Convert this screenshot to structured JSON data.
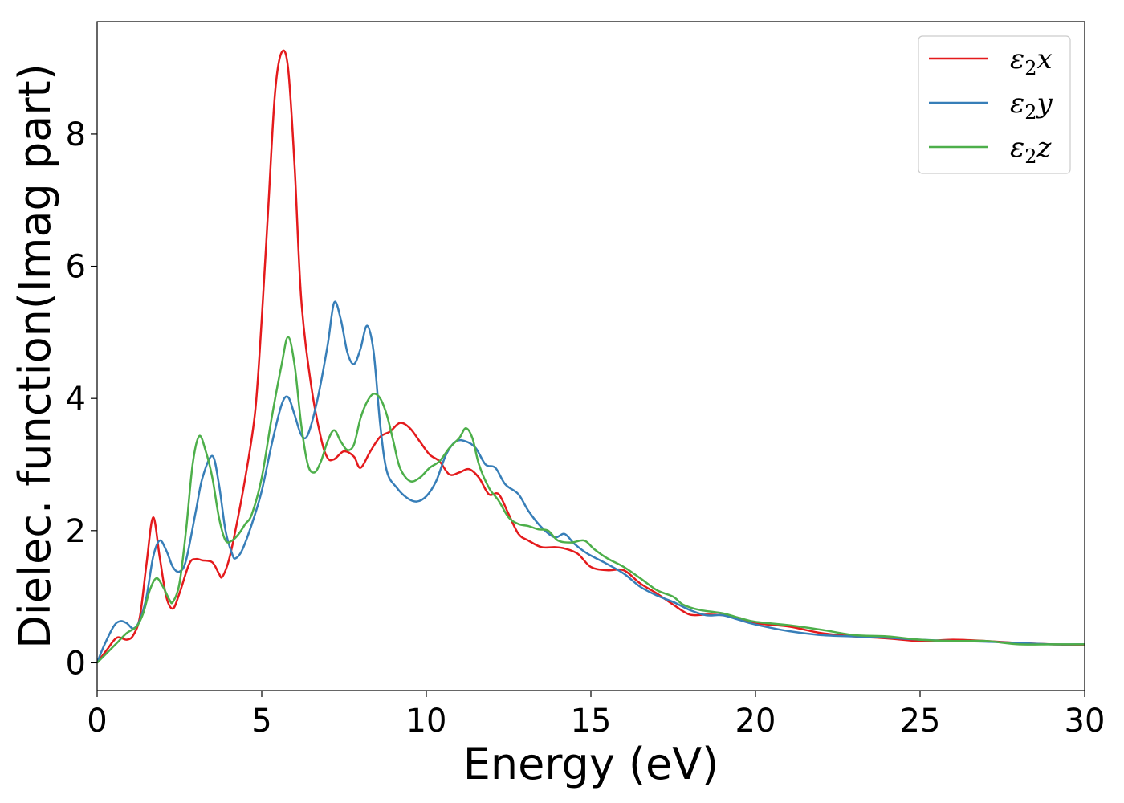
{
  "chart_data": {
    "type": "line",
    "title": "",
    "xlabel": "Energy (eV)",
    "ylabel": "Dielec. function(Imag part)",
    "xlim": [
      0,
      30
    ],
    "ylim": [
      -0.42,
      9.7
    ],
    "xticks": [
      0,
      5,
      10,
      15,
      20,
      25,
      30
    ],
    "yticks": [
      0,
      2,
      4,
      6,
      8
    ],
    "grid": false,
    "legend_position": "top-right",
    "series": [
      {
        "name": "ε2x",
        "legend": {
          "base": "ε",
          "sub": "2",
          "suffix": "x"
        },
        "color": "#e41a1c",
        "points": [
          [
            0,
            0
          ],
          [
            0.3,
            0.2
          ],
          [
            0.6,
            0.38
          ],
          [
            0.9,
            0.35
          ],
          [
            1.1,
            0.42
          ],
          [
            1.3,
            0.7
          ],
          [
            1.5,
            1.5
          ],
          [
            1.7,
            2.2
          ],
          [
            1.9,
            1.6
          ],
          [
            2.1,
            1.0
          ],
          [
            2.3,
            0.82
          ],
          [
            2.5,
            1.05
          ],
          [
            2.8,
            1.5
          ],
          [
            3.0,
            1.57
          ],
          [
            3.2,
            1.55
          ],
          [
            3.5,
            1.52
          ],
          [
            3.7,
            1.35
          ],
          [
            3.8,
            1.3
          ],
          [
            4.0,
            1.55
          ],
          [
            4.2,
            2.0
          ],
          [
            4.5,
            2.8
          ],
          [
            4.8,
            3.8
          ],
          [
            5.0,
            5.2
          ],
          [
            5.2,
            6.9
          ],
          [
            5.4,
            8.6
          ],
          [
            5.6,
            9.23
          ],
          [
            5.8,
            9.0
          ],
          [
            6.0,
            7.5
          ],
          [
            6.2,
            5.5
          ],
          [
            6.5,
            4.2
          ],
          [
            6.8,
            3.4
          ],
          [
            7.0,
            3.1
          ],
          [
            7.2,
            3.08
          ],
          [
            7.5,
            3.2
          ],
          [
            7.8,
            3.12
          ],
          [
            8.0,
            2.95
          ],
          [
            8.3,
            3.2
          ],
          [
            8.6,
            3.42
          ],
          [
            8.9,
            3.5
          ],
          [
            9.2,
            3.63
          ],
          [
            9.5,
            3.55
          ],
          [
            9.8,
            3.35
          ],
          [
            10.1,
            3.15
          ],
          [
            10.4,
            3.05
          ],
          [
            10.7,
            2.85
          ],
          [
            11.0,
            2.88
          ],
          [
            11.3,
            2.93
          ],
          [
            11.6,
            2.8
          ],
          [
            11.9,
            2.55
          ],
          [
            12.2,
            2.55
          ],
          [
            12.5,
            2.25
          ],
          [
            12.8,
            1.95
          ],
          [
            13.1,
            1.85
          ],
          [
            13.5,
            1.75
          ],
          [
            13.9,
            1.75
          ],
          [
            14.2,
            1.73
          ],
          [
            14.6,
            1.65
          ],
          [
            15.0,
            1.45
          ],
          [
            15.5,
            1.4
          ],
          [
            16.0,
            1.4
          ],
          [
            16.5,
            1.2
          ],
          [
            17.0,
            1.05
          ],
          [
            17.5,
            0.88
          ],
          [
            18.0,
            0.73
          ],
          [
            18.5,
            0.73
          ],
          [
            19.0,
            0.72
          ],
          [
            19.5,
            0.68
          ],
          [
            20.0,
            0.6
          ],
          [
            21.0,
            0.55
          ],
          [
            22.0,
            0.45
          ],
          [
            23.0,
            0.4
          ],
          [
            24.0,
            0.37
          ],
          [
            25.0,
            0.33
          ],
          [
            26.0,
            0.35
          ],
          [
            27.0,
            0.33
          ],
          [
            28.0,
            0.3
          ],
          [
            29.0,
            0.28
          ],
          [
            30.0,
            0.27
          ]
        ]
      },
      {
        "name": "ε2y",
        "legend": {
          "base": "ε",
          "sub": "2",
          "suffix": "y"
        },
        "color": "#377eb8",
        "points": [
          [
            0,
            0
          ],
          [
            0.2,
            0.25
          ],
          [
            0.5,
            0.55
          ],
          [
            0.7,
            0.63
          ],
          [
            0.9,
            0.6
          ],
          [
            1.1,
            0.52
          ],
          [
            1.3,
            0.65
          ],
          [
            1.5,
            1.0
          ],
          [
            1.7,
            1.6
          ],
          [
            1.9,
            1.85
          ],
          [
            2.1,
            1.7
          ],
          [
            2.3,
            1.45
          ],
          [
            2.5,
            1.38
          ],
          [
            2.7,
            1.55
          ],
          [
            3.0,
            2.3
          ],
          [
            3.2,
            2.8
          ],
          [
            3.5,
            3.13
          ],
          [
            3.7,
            2.7
          ],
          [
            3.9,
            2.0
          ],
          [
            4.1,
            1.65
          ],
          [
            4.2,
            1.58
          ],
          [
            4.4,
            1.7
          ],
          [
            4.7,
            2.1
          ],
          [
            5.0,
            2.6
          ],
          [
            5.3,
            3.3
          ],
          [
            5.6,
            3.9
          ],
          [
            5.8,
            4.02
          ],
          [
            6.0,
            3.75
          ],
          [
            6.2,
            3.45
          ],
          [
            6.4,
            3.45
          ],
          [
            6.7,
            4.0
          ],
          [
            7.0,
            4.8
          ],
          [
            7.2,
            5.45
          ],
          [
            7.4,
            5.2
          ],
          [
            7.6,
            4.7
          ],
          [
            7.8,
            4.52
          ],
          [
            8.0,
            4.75
          ],
          [
            8.2,
            5.1
          ],
          [
            8.4,
            4.7
          ],
          [
            8.6,
            3.6
          ],
          [
            8.8,
            2.9
          ],
          [
            9.1,
            2.65
          ],
          [
            9.4,
            2.5
          ],
          [
            9.7,
            2.44
          ],
          [
            10.0,
            2.52
          ],
          [
            10.3,
            2.75
          ],
          [
            10.6,
            3.15
          ],
          [
            10.9,
            3.35
          ],
          [
            11.2,
            3.35
          ],
          [
            11.5,
            3.25
          ],
          [
            11.8,
            3.0
          ],
          [
            12.1,
            2.95
          ],
          [
            12.4,
            2.7
          ],
          [
            12.8,
            2.55
          ],
          [
            13.1,
            2.3
          ],
          [
            13.5,
            2.05
          ],
          [
            13.9,
            1.9
          ],
          [
            14.2,
            1.95
          ],
          [
            14.5,
            1.8
          ],
          [
            14.9,
            1.65
          ],
          [
            15.4,
            1.52
          ],
          [
            16.0,
            1.35
          ],
          [
            16.5,
            1.15
          ],
          [
            17.0,
            1.02
          ],
          [
            17.5,
            0.92
          ],
          [
            18.0,
            0.8
          ],
          [
            18.5,
            0.72
          ],
          [
            19.0,
            0.72
          ],
          [
            19.5,
            0.65
          ],
          [
            20.0,
            0.58
          ],
          [
            21.0,
            0.48
          ],
          [
            22.0,
            0.42
          ],
          [
            23.0,
            0.4
          ],
          [
            24.0,
            0.38
          ],
          [
            25.0,
            0.35
          ],
          [
            26.0,
            0.33
          ],
          [
            27.0,
            0.32
          ],
          [
            28.0,
            0.3
          ],
          [
            29.0,
            0.28
          ],
          [
            30.0,
            0.28
          ]
        ]
      },
      {
        "name": "ε2z",
        "legend": {
          "base": "ε",
          "sub": "2",
          "suffix": "z"
        },
        "color": "#4daf4a",
        "points": [
          [
            0,
            0
          ],
          [
            0.3,
            0.15
          ],
          [
            0.6,
            0.3
          ],
          [
            0.9,
            0.45
          ],
          [
            1.2,
            0.55
          ],
          [
            1.4,
            0.75
          ],
          [
            1.6,
            1.1
          ],
          [
            1.8,
            1.28
          ],
          [
            2.0,
            1.15
          ],
          [
            2.2,
            0.95
          ],
          [
            2.3,
            0.92
          ],
          [
            2.5,
            1.2
          ],
          [
            2.7,
            2.0
          ],
          [
            2.9,
            3.0
          ],
          [
            3.1,
            3.43
          ],
          [
            3.3,
            3.2
          ],
          [
            3.5,
            2.8
          ],
          [
            3.7,
            2.2
          ],
          [
            3.9,
            1.85
          ],
          [
            4.1,
            1.85
          ],
          [
            4.3,
            1.95
          ],
          [
            4.5,
            2.1
          ],
          [
            4.7,
            2.25
          ],
          [
            5.0,
            2.8
          ],
          [
            5.3,
            3.7
          ],
          [
            5.6,
            4.5
          ],
          [
            5.8,
            4.93
          ],
          [
            6.0,
            4.5
          ],
          [
            6.2,
            3.6
          ],
          [
            6.4,
            3.0
          ],
          [
            6.6,
            2.88
          ],
          [
            6.8,
            3.05
          ],
          [
            7.0,
            3.35
          ],
          [
            7.2,
            3.52
          ],
          [
            7.4,
            3.35
          ],
          [
            7.6,
            3.22
          ],
          [
            7.8,
            3.3
          ],
          [
            8.0,
            3.7
          ],
          [
            8.2,
            3.95
          ],
          [
            8.4,
            4.07
          ],
          [
            8.6,
            4.0
          ],
          [
            8.8,
            3.75
          ],
          [
            9.0,
            3.35
          ],
          [
            9.2,
            2.95
          ],
          [
            9.5,
            2.75
          ],
          [
            9.8,
            2.8
          ],
          [
            10.1,
            2.95
          ],
          [
            10.4,
            3.05
          ],
          [
            10.7,
            3.25
          ],
          [
            11.0,
            3.4
          ],
          [
            11.2,
            3.55
          ],
          [
            11.4,
            3.4
          ],
          [
            11.6,
            3.0
          ],
          [
            11.9,
            2.65
          ],
          [
            12.2,
            2.45
          ],
          [
            12.5,
            2.2
          ],
          [
            12.8,
            2.1
          ],
          [
            13.1,
            2.07
          ],
          [
            13.4,
            2.02
          ],
          [
            13.7,
            2.0
          ],
          [
            14.0,
            1.85
          ],
          [
            14.4,
            1.82
          ],
          [
            14.8,
            1.85
          ],
          [
            15.1,
            1.72
          ],
          [
            15.5,
            1.58
          ],
          [
            16.0,
            1.45
          ],
          [
            16.5,
            1.28
          ],
          [
            17.0,
            1.1
          ],
          [
            17.5,
            1.0
          ],
          [
            17.8,
            0.88
          ],
          [
            18.3,
            0.8
          ],
          [
            19.0,
            0.75
          ],
          [
            19.5,
            0.68
          ],
          [
            20.0,
            0.62
          ],
          [
            21.0,
            0.57
          ],
          [
            22.0,
            0.5
          ],
          [
            23.0,
            0.42
          ],
          [
            24.0,
            0.4
          ],
          [
            25.0,
            0.35
          ],
          [
            26.0,
            0.33
          ],
          [
            27.0,
            0.33
          ],
          [
            28.0,
            0.28
          ],
          [
            29.0,
            0.28
          ],
          [
            30.0,
            0.28
          ]
        ]
      }
    ]
  }
}
